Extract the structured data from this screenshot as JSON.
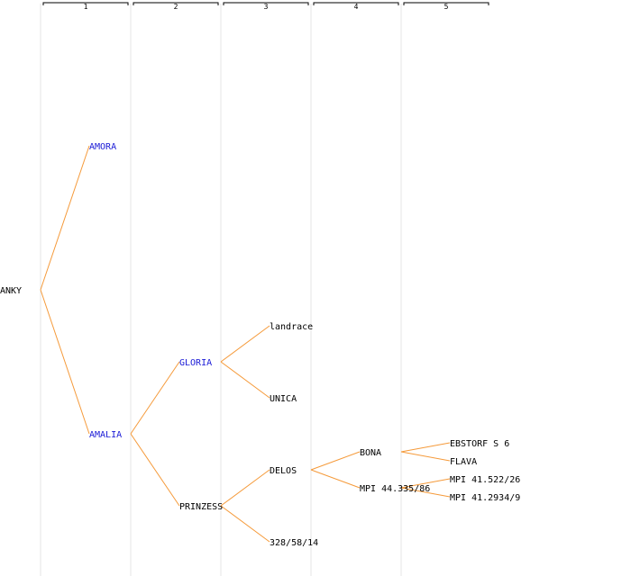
{
  "colors": {
    "edge": "#f59a3a",
    "linked_text": "#1a1ad6",
    "plain_text": "#000000",
    "column_rule": "#e6e6e6",
    "bracket": "#000000"
  },
  "generations": [
    "1",
    "2",
    "3",
    "4",
    "5"
  ],
  "nodes": [
    {
      "id": "anky",
      "label": "ANKY",
      "gen": 0,
      "linked": false
    },
    {
      "id": "amora",
      "label": "AMORA",
      "gen": 1,
      "linked": true,
      "parent": "anky"
    },
    {
      "id": "amalia",
      "label": "AMALIA",
      "gen": 1,
      "linked": true,
      "parent": "anky"
    },
    {
      "id": "gloria",
      "label": "GLORIA",
      "gen": 2,
      "linked": true,
      "parent": "amalia"
    },
    {
      "id": "prinzess",
      "label": "PRINZESS",
      "gen": 2,
      "linked": false,
      "parent": "amalia"
    },
    {
      "id": "landrace",
      "label": "landrace",
      "gen": 3,
      "linked": false,
      "parent": "gloria"
    },
    {
      "id": "unica",
      "label": "UNICA",
      "gen": 3,
      "linked": false,
      "parent": "gloria"
    },
    {
      "id": "delos",
      "label": "DELOS",
      "gen": 3,
      "linked": false,
      "parent": "prinzess"
    },
    {
      "id": "n328",
      "label": "328/58/14",
      "gen": 3,
      "linked": false,
      "parent": "prinzess"
    },
    {
      "id": "bona",
      "label": "BONA",
      "gen": 4,
      "linked": false,
      "parent": "delos"
    },
    {
      "id": "mpi44",
      "label": "MPI 44.335/86",
      "gen": 4,
      "linked": false,
      "parent": "delos"
    },
    {
      "id": "ebstorf",
      "label": "EBSTORF S 6",
      "gen": 5,
      "linked": false,
      "parent": "bona"
    },
    {
      "id": "flava",
      "label": "FLAVA",
      "gen": 5,
      "linked": false,
      "parent": "bona"
    },
    {
      "id": "mpi41a",
      "label": "MPI 41.522/26",
      "gen": 5,
      "linked": false,
      "parent": "mpi44"
    },
    {
      "id": "mpi41b",
      "label": "MPI 41.2934/9",
      "gen": 5,
      "linked": false,
      "parent": "mpi44"
    }
  ]
}
